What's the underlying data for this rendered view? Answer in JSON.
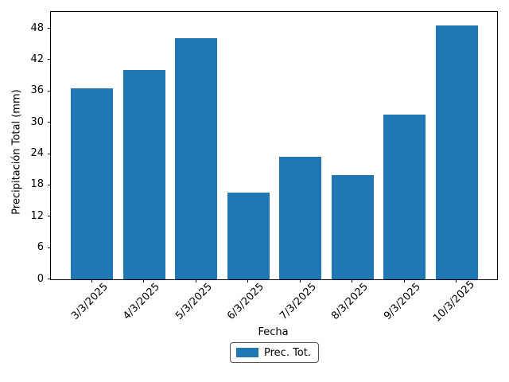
{
  "chart_data": {
    "type": "bar",
    "title": "",
    "xlabel": "Fecha",
    "ylabel": "Precipitación Total (mm)",
    "categories": [
      "3/3/2025",
      "4/3/2025",
      "5/3/2025",
      "6/3/2025",
      "7/3/2025",
      "8/3/2025",
      "9/3/2025",
      "10/3/2025"
    ],
    "series": [
      {
        "name": "Prec. Tot.",
        "values": [
          36.5,
          40.0,
          46.2,
          16.6,
          23.4,
          20.0,
          31.6,
          48.6
        ]
      }
    ],
    "yticks": [
      0,
      6,
      12,
      18,
      24,
      30,
      36,
      42,
      48
    ],
    "ylim": [
      0,
      51.2
    ],
    "xtick_rotation": 45,
    "grid": false,
    "bar_color": "#1f77b4",
    "legend": {
      "label": "Prec. Tot.",
      "position": "lower center, outside plot"
    }
  }
}
